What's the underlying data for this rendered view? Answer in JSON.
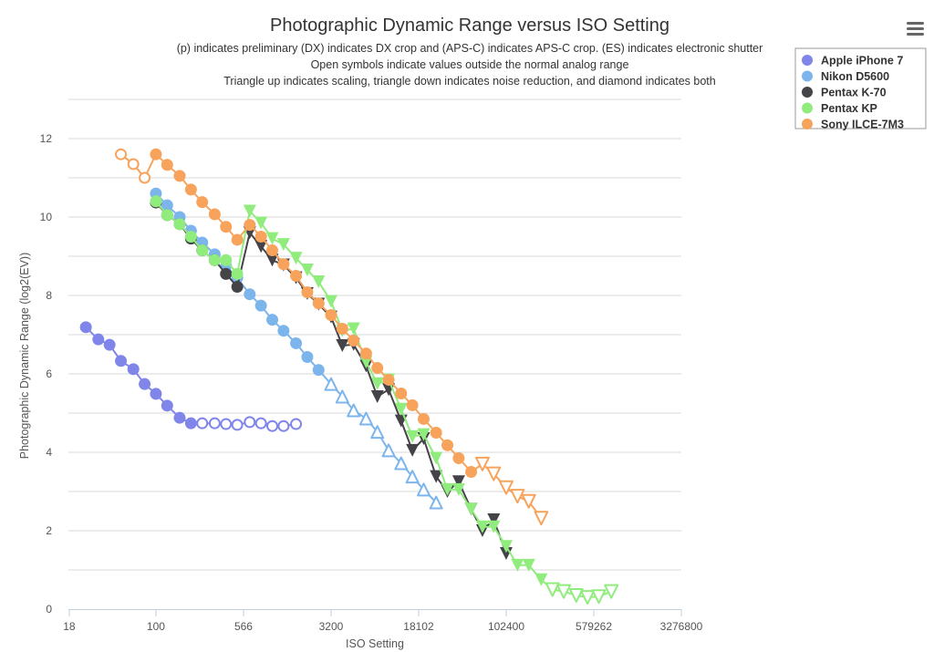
{
  "chart_data": {
    "type": "scatter",
    "title": "Photographic Dynamic Range versus ISO Setting",
    "subtitles": [
      "(p) indicates preliminary (DX) indicates DX crop and (APS-C) indicates APS-C crop. (ES) indicates electronic shutter",
      "Open symbols indicate values outside the normal analog range",
      "Triangle up indicates scaling, triangle down indicates noise reduction, and diamond indicates both"
    ],
    "xlabel": "ISO Setting",
    "ylabel": "Photographic Dynamic Range (log2(EV))",
    "x_scale": "log2",
    "xlim": [
      17.7,
      3276800
    ],
    "ylim": [
      0,
      13
    ],
    "x_ticks": [
      "18",
      "100",
      "566",
      "3200",
      "18102",
      "102400",
      "579262",
      "3276800"
    ],
    "y_ticks": [
      0,
      2,
      4,
      6,
      8,
      10,
      12
    ],
    "grid": true,
    "legend_position": "top-right",
    "marker_codes": {
      "c": "filled circle",
      "oc": "open circle",
      "v": "filled triangle down",
      "ov": "open triangle down",
      "o^": "open triangle up"
    },
    "series": [
      {
        "name": "Apple iPhone 7",
        "color": "#8085e9",
        "points": [
          [
            25,
            7.19,
            "c"
          ],
          [
            32,
            6.88,
            "c"
          ],
          [
            40,
            6.74,
            "c"
          ],
          [
            50,
            6.33,
            "c"
          ],
          [
            64,
            6.12,
            "c"
          ],
          [
            80,
            5.74,
            "c"
          ],
          [
            100,
            5.49,
            "c"
          ],
          [
            125,
            5.19,
            "c"
          ],
          [
            160,
            4.88,
            "c"
          ],
          [
            200,
            4.74,
            "c"
          ],
          [
            250,
            4.74,
            "oc"
          ],
          [
            320,
            4.74,
            "oc"
          ],
          [
            400,
            4.72,
            "oc"
          ],
          [
            500,
            4.7,
            "oc"
          ],
          [
            640,
            4.77,
            "oc"
          ],
          [
            800,
            4.74,
            "oc"
          ],
          [
            1000,
            4.67,
            "oc"
          ],
          [
            1250,
            4.67,
            "oc"
          ],
          [
            1600,
            4.72,
            "oc"
          ]
        ]
      },
      {
        "name": "Nikon D5600",
        "color": "#7cb5ec",
        "points": [
          [
            100,
            10.6,
            "c"
          ],
          [
            125,
            10.3,
            "c"
          ],
          [
            160,
            10.0,
            "c"
          ],
          [
            200,
            9.65,
            "c"
          ],
          [
            250,
            9.35,
            "c"
          ],
          [
            320,
            9.05,
            "c"
          ],
          [
            400,
            8.75,
            "c"
          ],
          [
            500,
            8.45,
            "c"
          ],
          [
            640,
            8.03,
            "c"
          ],
          [
            800,
            7.74,
            "c"
          ],
          [
            1000,
            7.38,
            "c"
          ],
          [
            1250,
            7.1,
            "c"
          ],
          [
            1600,
            6.78,
            "c"
          ],
          [
            2000,
            6.43,
            "c"
          ],
          [
            2500,
            6.1,
            "c"
          ],
          [
            3200,
            5.74,
            "o^"
          ],
          [
            4000,
            5.42,
            "o^"
          ],
          [
            5000,
            5.07,
            "o^"
          ],
          [
            6400,
            4.86,
            "o^"
          ],
          [
            8000,
            4.52,
            "o^"
          ],
          [
            10000,
            4.05,
            "o^"
          ],
          [
            12800,
            3.72,
            "o^"
          ],
          [
            16000,
            3.38,
            "o^"
          ],
          [
            20000,
            3.05,
            "o^"
          ],
          [
            25600,
            2.72,
            "o^"
          ]
        ]
      },
      {
        "name": "Pentax K-70",
        "color": "#434348",
        "points": [
          [
            100,
            10.37,
            "c"
          ],
          [
            125,
            10.05,
            "c"
          ],
          [
            160,
            9.82,
            "c"
          ],
          [
            200,
            9.45,
            "c"
          ],
          [
            250,
            9.15,
            "c"
          ],
          [
            320,
            8.9,
            "c"
          ],
          [
            400,
            8.55,
            "c"
          ],
          [
            500,
            8.22,
            "c"
          ],
          [
            640,
            9.6,
            "v"
          ],
          [
            800,
            9.25,
            "v"
          ],
          [
            1000,
            8.9,
            "v"
          ],
          [
            1250,
            8.78,
            "v"
          ],
          [
            1600,
            8.45,
            "v"
          ],
          [
            2000,
            8.05,
            "v"
          ],
          [
            2500,
            7.78,
            "v"
          ],
          [
            3200,
            7.45,
            "v"
          ],
          [
            4000,
            6.72,
            "v"
          ],
          [
            5000,
            6.75,
            "v"
          ],
          [
            6400,
            6.2,
            "v"
          ],
          [
            8000,
            5.42,
            "v"
          ],
          [
            10000,
            5.6,
            "v"
          ],
          [
            12800,
            4.8,
            "v"
          ],
          [
            16000,
            4.05,
            "v"
          ],
          [
            20000,
            4.35,
            "v"
          ],
          [
            25600,
            3.38,
            "v"
          ],
          [
            32000,
            3.0,
            "v"
          ],
          [
            40000,
            3.25,
            "v"
          ],
          [
            51200,
            2.55,
            "v"
          ],
          [
            64000,
            2.0,
            "v"
          ],
          [
            80000,
            2.28,
            "v"
          ],
          [
            102400,
            1.42,
            "v"
          ]
        ]
      },
      {
        "name": "Pentax KP",
        "color": "#90ed7d",
        "points": [
          [
            100,
            10.4,
            "c"
          ],
          [
            125,
            10.05,
            "c"
          ],
          [
            160,
            9.82,
            "c"
          ],
          [
            200,
            9.5,
            "c"
          ],
          [
            250,
            9.15,
            "c"
          ],
          [
            320,
            8.9,
            "c"
          ],
          [
            400,
            8.9,
            "c"
          ],
          [
            500,
            8.55,
            "c"
          ],
          [
            640,
            10.15,
            "v"
          ],
          [
            800,
            9.85,
            "v"
          ],
          [
            1000,
            9.45,
            "v"
          ],
          [
            1250,
            9.3,
            "v"
          ],
          [
            1600,
            8.95,
            "v"
          ],
          [
            2000,
            8.65,
            "v"
          ],
          [
            2500,
            8.35,
            "v"
          ],
          [
            3200,
            7.85,
            "v"
          ],
          [
            4000,
            7.1,
            "v"
          ],
          [
            5000,
            7.15,
            "v"
          ],
          [
            6400,
            6.3,
            "v"
          ],
          [
            8000,
            5.75,
            "v"
          ],
          [
            10000,
            5.85,
            "v"
          ],
          [
            12800,
            5.1,
            "v"
          ],
          [
            16000,
            4.4,
            "v"
          ],
          [
            20000,
            4.45,
            "v"
          ],
          [
            25600,
            3.85,
            "v"
          ],
          [
            32000,
            3.05,
            "v"
          ],
          [
            40000,
            3.05,
            "v"
          ],
          [
            51200,
            2.55,
            "v"
          ],
          [
            64000,
            2.1,
            "v"
          ],
          [
            80000,
            2.1,
            "v"
          ],
          [
            102400,
            1.6,
            "v"
          ],
          [
            128000,
            1.12,
            "v"
          ],
          [
            160000,
            1.12,
            "v"
          ],
          [
            204800,
            0.75,
            "v"
          ],
          [
            256000,
            0.5,
            "ov"
          ],
          [
            320000,
            0.45,
            "ov"
          ],
          [
            409600,
            0.35,
            "ov"
          ],
          [
            512000,
            0.3,
            "ov"
          ],
          [
            640000,
            0.32,
            "ov"
          ],
          [
            819200,
            0.45,
            "ov"
          ]
        ]
      },
      {
        "name": "Sony ILCE-7M3",
        "color": "#f7a35c",
        "points": [
          [
            50,
            11.6,
            "oc"
          ],
          [
            64,
            11.35,
            "oc"
          ],
          [
            80,
            11.0,
            "oc"
          ],
          [
            100,
            11.6,
            "c"
          ],
          [
            125,
            11.33,
            "c"
          ],
          [
            160,
            11.05,
            "c"
          ],
          [
            200,
            10.7,
            "c"
          ],
          [
            250,
            10.38,
            "c"
          ],
          [
            320,
            10.07,
            "c"
          ],
          [
            400,
            9.75,
            "c"
          ],
          [
            500,
            9.42,
            "c"
          ],
          [
            640,
            9.8,
            "c"
          ],
          [
            800,
            9.5,
            "c"
          ],
          [
            1000,
            9.15,
            "c"
          ],
          [
            1250,
            8.8,
            "c"
          ],
          [
            1600,
            8.5,
            "c"
          ],
          [
            2000,
            8.08,
            "c"
          ],
          [
            2500,
            7.8,
            "c"
          ],
          [
            3200,
            7.5,
            "c"
          ],
          [
            4000,
            7.15,
            "c"
          ],
          [
            5000,
            6.85,
            "c"
          ],
          [
            6400,
            6.52,
            "c"
          ],
          [
            8000,
            6.15,
            "c"
          ],
          [
            10000,
            5.85,
            "c"
          ],
          [
            12800,
            5.5,
            "c"
          ],
          [
            16000,
            5.2,
            "c"
          ],
          [
            20000,
            4.85,
            "c"
          ],
          [
            25600,
            4.5,
            "c"
          ],
          [
            32000,
            4.18,
            "c"
          ],
          [
            40000,
            3.85,
            "c"
          ],
          [
            51200,
            3.5,
            "c"
          ],
          [
            64000,
            3.7,
            "ov"
          ],
          [
            80000,
            3.45,
            "ov"
          ],
          [
            102400,
            3.1,
            "ov"
          ],
          [
            128000,
            2.88,
            "ov"
          ],
          [
            160000,
            2.75,
            "ov"
          ],
          [
            204800,
            2.32,
            "ov"
          ]
        ]
      }
    ]
  }
}
